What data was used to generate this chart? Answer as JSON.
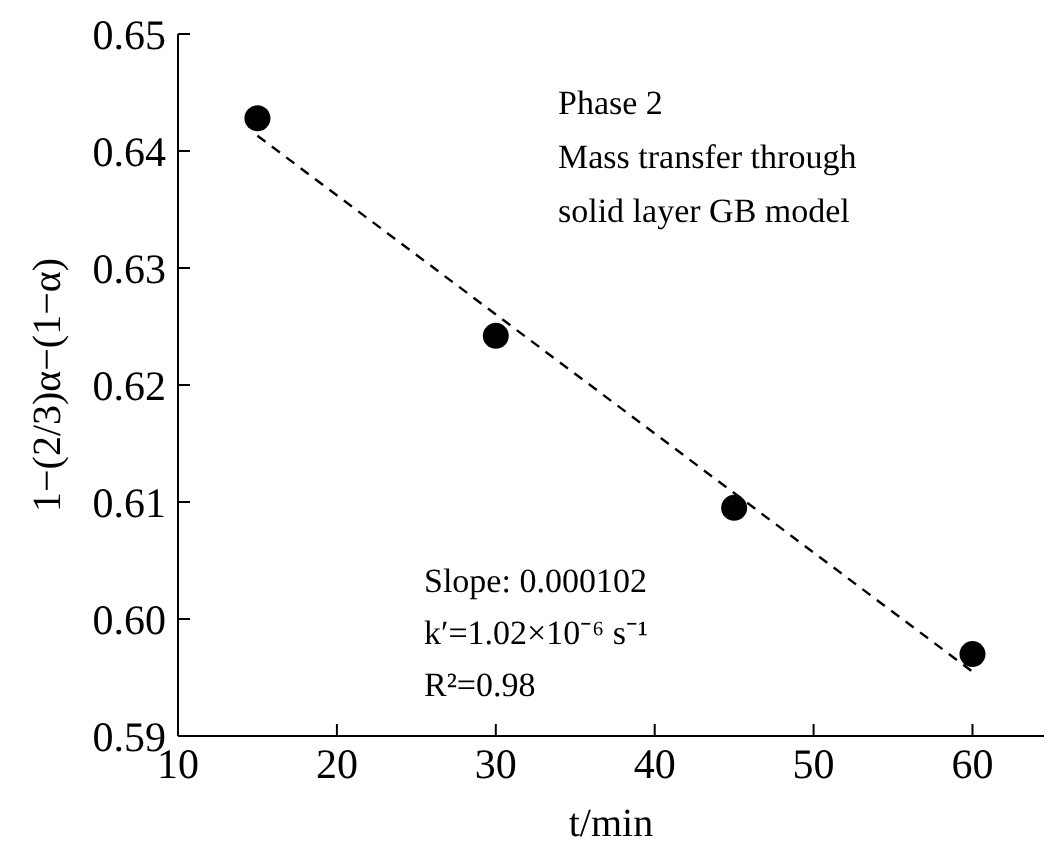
{
  "chart_data": {
    "type": "scatter",
    "xlabel": "t/min",
    "ylabel": "1−(2/3)α−(1−α)",
    "xlim": [
      10,
      64.5
    ],
    "xticks": [
      10,
      20,
      30,
      40,
      50,
      60
    ],
    "ylim": [
      0.59,
      0.65
    ],
    "yticks": [
      0.59,
      {
        "value": 0.6,
        "label": "0.60"
      },
      0.61,
      0.62,
      0.63,
      0.64,
      0.65
    ],
    "marker": "circle",
    "series": [
      {
        "color": "#000000",
        "x": [
          15,
          30,
          45,
          60
        ],
        "values": [
          0.6428,
          0.6242,
          0.6095,
          0.597
        ]
      },
      {
        "type": "line",
        "color": "#000000",
        "line_style": "dashed",
        "marker": "none",
        "x": [
          15,
          60
        ],
        "values": [
          0.6413,
          0.5955
        ]
      }
    ],
    "annotations": [
      "Phase 2",
      "Mass transfer through",
      "solid layer GB model",
      "Slope: 0.000102",
      "k′=1.02×10⁻⁶ s⁻¹",
      "R²=0.98"
    ]
  }
}
